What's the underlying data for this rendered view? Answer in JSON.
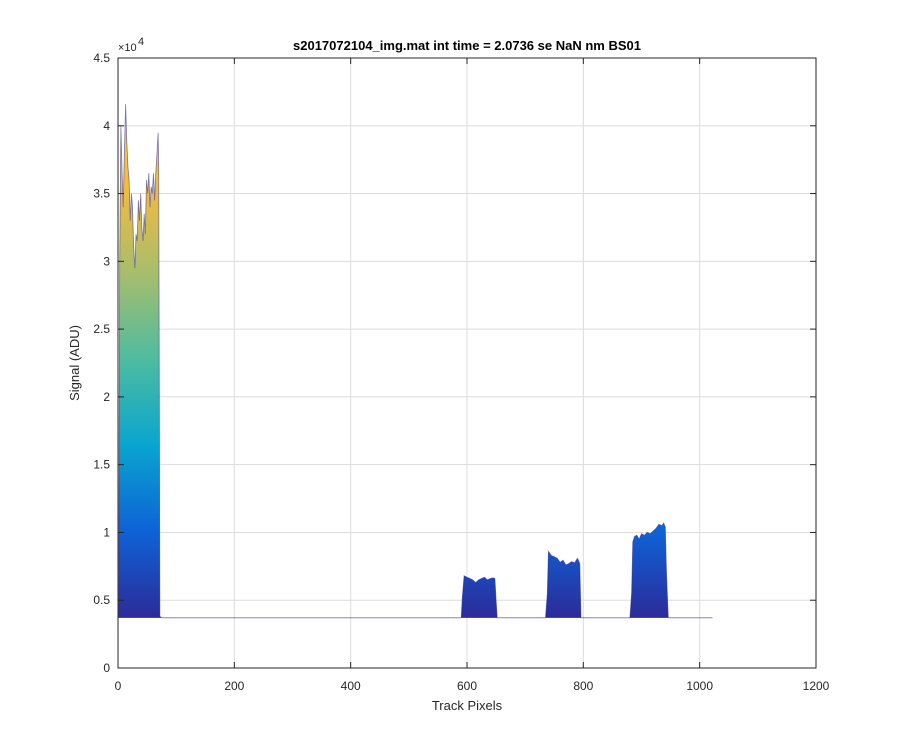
{
  "chart_data": {
    "type": "area",
    "title": "s2017072104_img.mat int time = 2.0736 se  NaN nm BS01",
    "xlabel": "Track Pixels",
    "ylabel": "Signal (ADU)",
    "xlim": [
      0,
      1200
    ],
    "ylim": [
      0,
      45000
    ],
    "x_ticks": [
      0,
      200,
      400,
      600,
      800,
      1000,
      1200
    ],
    "y_ticks": [
      0,
      5000,
      10000,
      15000,
      20000,
      25000,
      30000,
      35000,
      40000,
      45000
    ],
    "x_tick_labels": [
      "0",
      "200",
      "400",
      "600",
      "800",
      "1000",
      "1200"
    ],
    "y_tick_labels": [
      "0",
      "0.5",
      "1",
      "1.5",
      "2",
      "2.5",
      "3",
      "3.5",
      "4",
      "4.5"
    ],
    "y_exponent_label": "×10",
    "y_exponent_power": "4",
    "grid": true,
    "colormap": [
      "#2c2b99",
      "#0e62d7",
      "#0aa5cf",
      "#4fbca0",
      "#a9bd6b",
      "#f4bb3e",
      "#f9d92b"
    ],
    "baseline": 3700,
    "series": [
      {
        "x": [
          1,
          3,
          5,
          7,
          9,
          11,
          13,
          15,
          17,
          19,
          21,
          23,
          25,
          27,
          29,
          31,
          33,
          35,
          37,
          39,
          41,
          43,
          45,
          47,
          49,
          51,
          53,
          55,
          57,
          59,
          61,
          63,
          65,
          67,
          69,
          70,
          72,
          75,
          80,
          100,
          200,
          300,
          400,
          500,
          590,
          592,
          595,
          600,
          605,
          610,
          615,
          620,
          625,
          630,
          635,
          640,
          645,
          648,
          650,
          652,
          700,
          735,
          738,
          740,
          745,
          750,
          755,
          760,
          765,
          770,
          775,
          780,
          785,
          790,
          794,
          796,
          800,
          850,
          880,
          883,
          885,
          888,
          892,
          896,
          900,
          905,
          910,
          915,
          920,
          925,
          930,
          935,
          938,
          941,
          943,
          946,
          1000,
          1022
        ],
        "y": [
          3700,
          30000,
          40000,
          36500,
          34000,
          38000,
          41600,
          39000,
          37000,
          36000,
          33000,
          35000,
          34000,
          31000,
          29500,
          32000,
          31500,
          34500,
          33000,
          35000,
          32500,
          31500,
          33500,
          32000,
          36000,
          35000,
          36500,
          34000,
          35500,
          35000,
          36500,
          34500,
          36500,
          38000,
          39500,
          37000,
          3800,
          3720,
          3700,
          3700,
          3700,
          3700,
          3700,
          3700,
          3700,
          5200,
          6800,
          6700,
          6600,
          6500,
          6300,
          6500,
          6600,
          6700,
          6500,
          6600,
          6650,
          6600,
          5000,
          3700,
          3700,
          3700,
          5500,
          8600,
          8300,
          8200,
          8100,
          7800,
          7950,
          7600,
          7700,
          7850,
          7750,
          8100,
          7700,
          3700,
          3700,
          3700,
          3700,
          5500,
          9300,
          9700,
          9800,
          9500,
          9900,
          9800,
          10000,
          9900,
          10100,
          10300,
          10600,
          10500,
          10700,
          10400,
          7000,
          3700,
          3700,
          3700
        ]
      }
    ]
  }
}
